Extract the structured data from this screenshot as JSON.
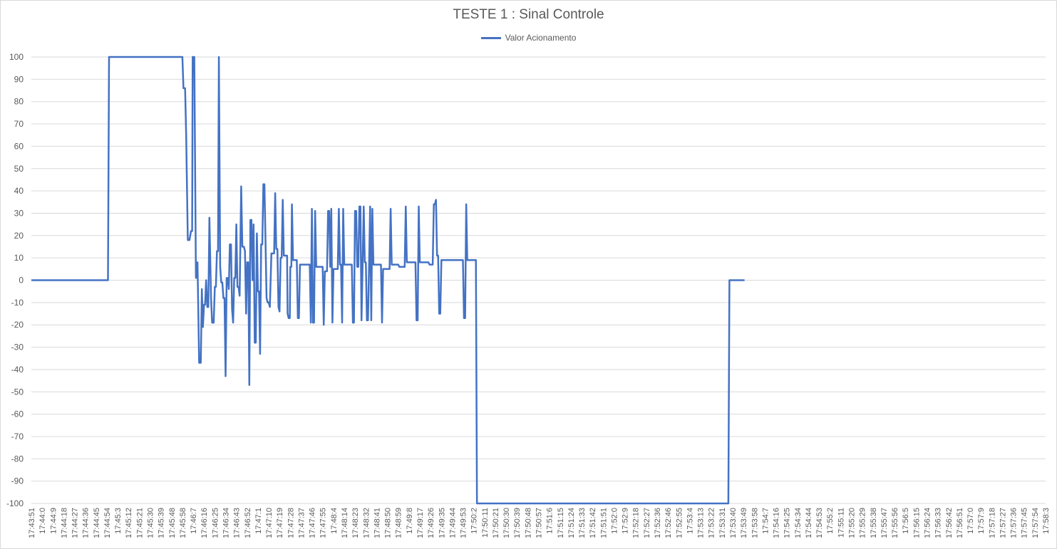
{
  "chart_data": {
    "type": "line",
    "title": "TESTE 1 : Sinal Controle",
    "xlabel": "",
    "ylabel": "",
    "ylim": [
      -100,
      100
    ],
    "yticks": [
      100,
      90,
      80,
      70,
      60,
      50,
      40,
      30,
      20,
      10,
      0,
      -10,
      -20,
      -30,
      -40,
      -50,
      -60,
      -70,
      -80,
      -90,
      -100
    ],
    "grid": "horizontal",
    "legend": "top-center",
    "colors": {
      "series": "#4472c4",
      "grid": "#d9d9d9",
      "text": "#595959"
    },
    "categories": [
      "17:43:51",
      "17:44:0",
      "17:44:9",
      "17:44:18",
      "17:44:27",
      "17:44:36",
      "17:44:45",
      "17:44:54",
      "17:45:3",
      "17:45:12",
      "17:45:21",
      "17:45:30",
      "17:45:39",
      "17:45:48",
      "17:45:58",
      "17:46:7",
      "17:46:16",
      "17:46:25",
      "17:46:34",
      "17:46:43",
      "17:46:52",
      "17:47:1",
      "17:47:10",
      "17:47:19",
      "17:47:28",
      "17:47:37",
      "17:47:46",
      "17:47:55",
      "17:48:4",
      "17:48:14",
      "17:48:23",
      "17:48:32",
      "17:48:41",
      "17:48:50",
      "17:48:59",
      "17:49:8",
      "17:49:17",
      "17:49:26",
      "17:49:35",
      "17:49:44",
      "17:49:53",
      "17:50:2",
      "17:50:11",
      "17:50:21",
      "17:50:30",
      "17:50:39",
      "17:50:48",
      "17:50:57",
      "17:51:6",
      "17:51:15",
      "17:51:24",
      "17:51:33",
      "17:51:42",
      "17:51:51",
      "17:52:0",
      "17:52:9",
      "17:52:18",
      "17:52:27",
      "17:52:36",
      "17:52:46",
      "17:52:55",
      "17:53:4",
      "17:53:13",
      "17:53:22",
      "17:53:31",
      "17:53:40",
      "17:53:49",
      "17:53:58",
      "17:54:7",
      "17:54:16",
      "17:54:25",
      "17:54:34",
      "17:54:44",
      "17:54:53",
      "17:55:2",
      "17:55:11",
      "17:55:20",
      "17:55:29",
      "17:55:38",
      "17:55:47",
      "17:55:56",
      "17:56:5",
      "17:56:15",
      "17:56:24",
      "17:56:33",
      "17:56:42",
      "17:56:51",
      "17:57:0",
      "17:57:9",
      "17:57:18",
      "17:57:27",
      "17:57:36",
      "17:57:45",
      "17:57:54",
      "17:58:3"
    ],
    "series": [
      {
        "name": "Valor Acionamento",
        "points": [
          [
            0,
            0
          ],
          [
            7.1,
            0
          ],
          [
            7.2,
            100
          ],
          [
            14.0,
            100
          ],
          [
            14.1,
            86
          ],
          [
            14.25,
            86
          ],
          [
            14.35,
            65
          ],
          [
            14.5,
            18
          ],
          [
            14.65,
            18
          ],
          [
            14.8,
            22
          ],
          [
            14.9,
            22
          ],
          [
            14.95,
            100
          ],
          [
            15.1,
            100
          ],
          [
            15.25,
            1
          ],
          [
            15.4,
            8
          ],
          [
            15.55,
            -37
          ],
          [
            15.7,
            -37
          ],
          [
            15.8,
            -4
          ],
          [
            15.9,
            -21
          ],
          [
            16.0,
            -11
          ],
          [
            16.1,
            -11
          ],
          [
            16.2,
            0
          ],
          [
            16.3,
            -12
          ],
          [
            16.4,
            -12
          ],
          [
            16.5,
            28
          ],
          [
            16.65,
            -8
          ],
          [
            16.75,
            -19
          ],
          [
            16.9,
            -19
          ],
          [
            17.0,
            -3
          ],
          [
            17.1,
            -3
          ],
          [
            17.2,
            13
          ],
          [
            17.3,
            13
          ],
          [
            17.38,
            100
          ],
          [
            17.5,
            6
          ],
          [
            17.6,
            -1
          ],
          [
            17.7,
            -1
          ],
          [
            17.8,
            -8
          ],
          [
            17.9,
            -8
          ],
          [
            18.0,
            -43
          ],
          [
            18.1,
            1
          ],
          [
            18.2,
            1
          ],
          [
            18.3,
            -4
          ],
          [
            18.4,
            16
          ],
          [
            18.5,
            16
          ],
          [
            18.6,
            -13
          ],
          [
            18.7,
            -19
          ],
          [
            18.8,
            1
          ],
          [
            18.9,
            1
          ],
          [
            19.0,
            25
          ],
          [
            19.1,
            -3
          ],
          [
            19.2,
            -3
          ],
          [
            19.3,
            -7
          ],
          [
            19.45,
            42
          ],
          [
            19.55,
            15
          ],
          [
            19.7,
            15
          ],
          [
            19.8,
            13
          ],
          [
            19.9,
            -15
          ],
          [
            20.0,
            8
          ],
          [
            20.1,
            8
          ],
          [
            20.2,
            -47
          ],
          [
            20.3,
            27
          ],
          [
            20.4,
            27
          ],
          [
            20.5,
            0
          ],
          [
            20.6,
            25
          ],
          [
            20.7,
            -28
          ],
          [
            20.8,
            -28
          ],
          [
            20.9,
            21
          ],
          [
            21.0,
            -5
          ],
          [
            21.1,
            -5
          ],
          [
            21.2,
            -33
          ],
          [
            21.3,
            16
          ],
          [
            21.4,
            16
          ],
          [
            21.5,
            43
          ],
          [
            21.6,
            43
          ],
          [
            21.7,
            18
          ],
          [
            21.8,
            -8
          ],
          [
            21.9,
            -10
          ],
          [
            22.0,
            -10
          ],
          [
            22.1,
            -12
          ],
          [
            22.25,
            12
          ],
          [
            22.4,
            12
          ],
          [
            22.5,
            12
          ],
          [
            22.6,
            39
          ],
          [
            22.7,
            14
          ],
          [
            22.8,
            14
          ],
          [
            22.9,
            -12
          ],
          [
            23.0,
            -14
          ],
          [
            23.1,
            10
          ],
          [
            23.2,
            10
          ],
          [
            23.3,
            36
          ],
          [
            23.4,
            11
          ],
          [
            23.5,
            11
          ],
          [
            23.7,
            11
          ],
          [
            23.75,
            -15
          ],
          [
            23.85,
            -17
          ],
          [
            23.95,
            -17
          ],
          [
            24.0,
            6
          ],
          [
            24.1,
            6
          ],
          [
            24.15,
            34
          ],
          [
            24.25,
            9
          ],
          [
            24.35,
            9
          ],
          [
            24.6,
            9
          ],
          [
            24.7,
            -17
          ],
          [
            24.8,
            -17
          ],
          [
            24.9,
            7
          ],
          [
            25.0,
            7
          ],
          [
            25.3,
            7
          ],
          [
            25.5,
            7
          ],
          [
            25.8,
            7
          ],
          [
            25.9,
            -19
          ],
          [
            26.0,
            32
          ],
          [
            26.1,
            -19
          ],
          [
            26.2,
            -19
          ],
          [
            26.3,
            31
          ],
          [
            26.4,
            6
          ],
          [
            26.5,
            6
          ],
          [
            27.0,
            6
          ],
          [
            27.1,
            -20
          ],
          [
            27.2,
            4
          ],
          [
            27.4,
            4
          ],
          [
            27.5,
            31
          ],
          [
            27.6,
            31
          ],
          [
            27.7,
            6
          ],
          [
            27.8,
            32
          ],
          [
            27.9,
            -19
          ],
          [
            28.0,
            5
          ],
          [
            28.1,
            5
          ],
          [
            28.4,
            5
          ],
          [
            28.5,
            32
          ],
          [
            28.6,
            7
          ],
          [
            28.7,
            7
          ],
          [
            28.8,
            -19
          ],
          [
            28.9,
            32
          ],
          [
            29.0,
            7
          ],
          [
            29.1,
            7
          ],
          [
            29.5,
            7
          ],
          [
            29.7,
            7
          ],
          [
            29.8,
            -19
          ],
          [
            29.9,
            -19
          ],
          [
            30.0,
            31
          ],
          [
            30.1,
            31
          ],
          [
            30.2,
            6
          ],
          [
            30.3,
            6
          ],
          [
            30.4,
            33
          ],
          [
            30.5,
            33
          ],
          [
            30.6,
            -18
          ],
          [
            30.7,
            6
          ],
          [
            30.8,
            33
          ],
          [
            30.9,
            8
          ],
          [
            31.0,
            8
          ],
          [
            31.1,
            -18
          ],
          [
            31.2,
            -18
          ],
          [
            31.3,
            6
          ],
          [
            31.4,
            33
          ],
          [
            31.5,
            -18
          ],
          [
            31.6,
            32
          ],
          [
            31.7,
            7
          ],
          [
            31.8,
            7
          ],
          [
            32.3,
            7
          ],
          [
            32.4,
            7
          ],
          [
            32.5,
            -19
          ],
          [
            32.6,
            5
          ],
          [
            32.7,
            5
          ],
          [
            33.1,
            5
          ],
          [
            33.2,
            5
          ],
          [
            33.3,
            32
          ],
          [
            33.4,
            7
          ],
          [
            33.5,
            7
          ],
          [
            34.0,
            7
          ],
          [
            34.1,
            6
          ],
          [
            34.5,
            6
          ],
          [
            34.6,
            6
          ],
          [
            34.7,
            33
          ],
          [
            34.8,
            8
          ],
          [
            34.9,
            8
          ],
          [
            35.5,
            8
          ],
          [
            35.6,
            8
          ],
          [
            35.7,
            -18
          ],
          [
            35.8,
            -18
          ],
          [
            35.9,
            33
          ],
          [
            36.0,
            8
          ],
          [
            36.1,
            8
          ],
          [
            36.8,
            8
          ],
          [
            36.9,
            7
          ],
          [
            37.2,
            7
          ],
          [
            37.3,
            34
          ],
          [
            37.4,
            34
          ],
          [
            37.5,
            36
          ],
          [
            37.6,
            11
          ],
          [
            37.7,
            11
          ],
          [
            37.8,
            -15
          ],
          [
            37.9,
            -15
          ],
          [
            38.0,
            9
          ],
          [
            38.1,
            9
          ],
          [
            38.5,
            9
          ],
          [
            39.0,
            9
          ],
          [
            39.5,
            9
          ],
          [
            40.0,
            9
          ],
          [
            40.1,
            -17
          ],
          [
            40.2,
            -17
          ],
          [
            40.3,
            34
          ],
          [
            40.4,
            9
          ],
          [
            40.5,
            9
          ],
          [
            41.0,
            9
          ],
          [
            41.2,
            9
          ],
          [
            41.3,
            -100
          ],
          [
            45,
            -100
          ],
          [
            50,
            -100
          ],
          [
            55,
            -100
          ],
          [
            60,
            -100
          ],
          [
            64.5,
            -100
          ],
          [
            64.6,
            -100
          ],
          [
            64.7,
            0
          ],
          [
            65,
            0
          ],
          [
            66.1,
            0
          ]
        ]
      }
    ]
  }
}
